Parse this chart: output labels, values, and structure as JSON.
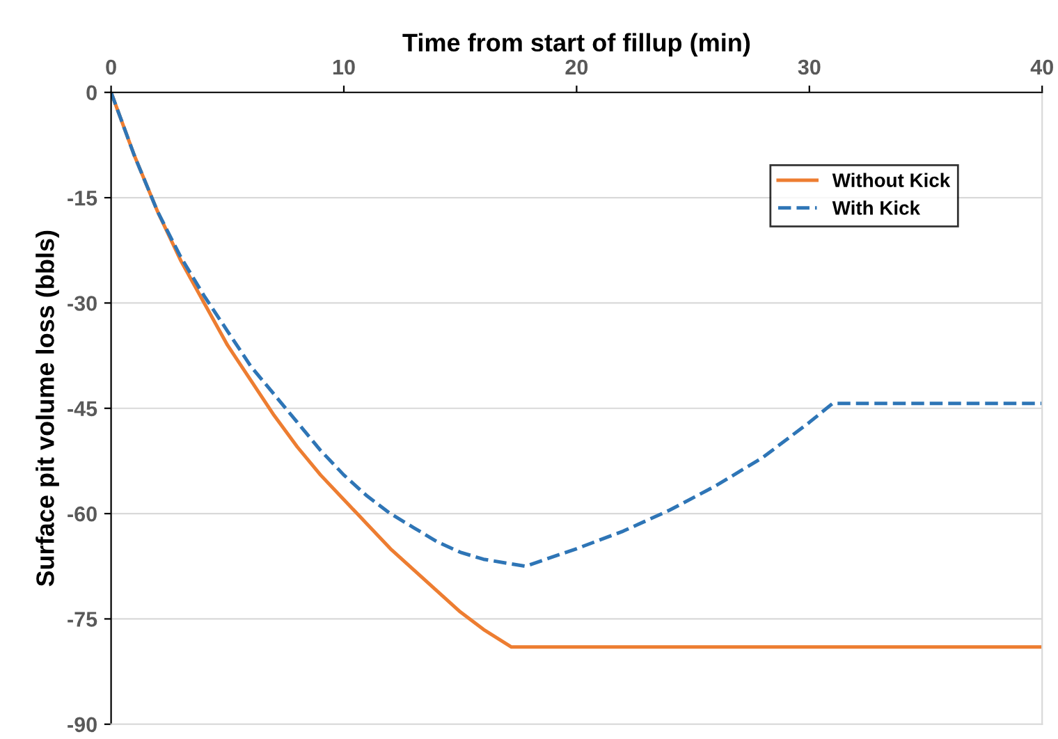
{
  "chart_data": {
    "type": "line",
    "xlabel": "Time from start of fillup (min)",
    "ylabel": "Surface pit volume loss (bbls)",
    "xlim": [
      0,
      40
    ],
    "xticks": [
      0,
      10,
      20,
      30,
      40
    ],
    "ylim": [
      -90,
      0
    ],
    "yticks": [
      -90,
      -75,
      -60,
      -45,
      -30,
      -15,
      0
    ],
    "grid": "y",
    "legend": "top right",
    "marker": "none",
    "series": [
      {
        "name": "Without Kick",
        "color": "#ed7d31",
        "line_style": "solid",
        "x": [
          0,
          1,
          2,
          3,
          4,
          5,
          6,
          7,
          8,
          9,
          10,
          11,
          12,
          13,
          14,
          15,
          16,
          17.2,
          40
        ],
        "values": [
          0,
          -9,
          -17,
          -24,
          -30,
          -36,
          -41,
          -46,
          -50.5,
          -54.5,
          -58,
          -61.5,
          -65,
          -68,
          -71,
          -74,
          -76.5,
          -79,
          -79
        ]
      },
      {
        "name": "With Kick",
        "color": "#2e75b6",
        "line_style": "dashed",
        "x": [
          0,
          1,
          2,
          3,
          4,
          5,
          6,
          7,
          8,
          9,
          10,
          11,
          12,
          13,
          14,
          15,
          16,
          17.8,
          20,
          22,
          24,
          26,
          28,
          30,
          31,
          40
        ],
        "values": [
          0,
          -9,
          -17,
          -23.5,
          -29,
          -34,
          -39,
          -43,
          -47,
          -51,
          -54.5,
          -57.5,
          -60,
          -62,
          -64,
          -65.5,
          -66.5,
          -67.5,
          -65,
          -62.5,
          -59.5,
          -56,
          -52,
          -47,
          -44.3,
          -44.3
        ]
      }
    ]
  }
}
